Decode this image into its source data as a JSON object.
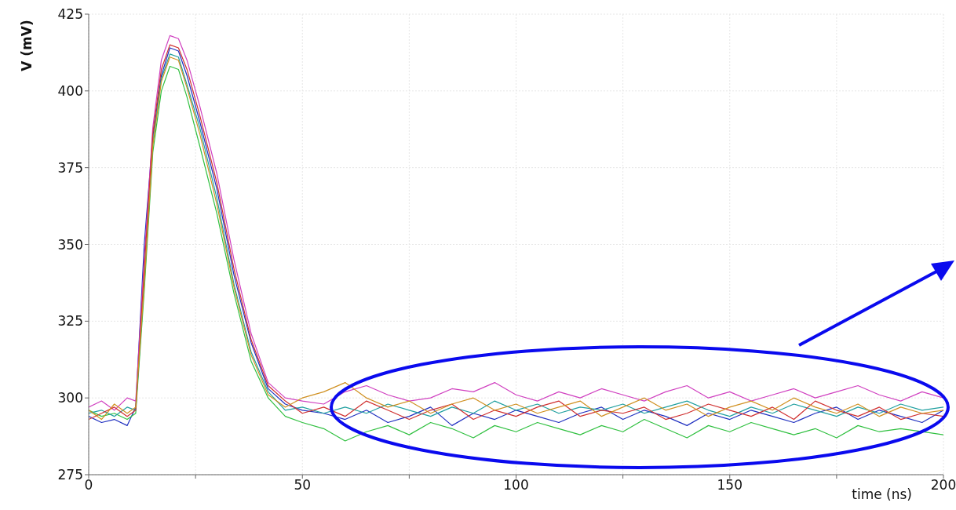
{
  "chart_data": {
    "type": "line",
    "xlabel": "time (ns)",
    "ylabel": "V (mV)",
    "x": [
      0,
      3,
      6,
      9,
      11,
      13,
      15,
      17,
      19,
      21,
      23,
      26,
      30,
      34,
      38,
      42,
      46,
      50,
      55,
      60,
      65,
      70,
      75,
      80,
      85,
      90,
      95,
      100,
      105,
      110,
      115,
      120,
      125,
      130,
      135,
      140,
      145,
      150,
      155,
      160,
      165,
      170,
      175,
      180,
      185,
      190,
      195,
      200
    ],
    "xlim": [
      0,
      200
    ],
    "xticks": [
      0,
      {
        "value": 25,
        "label": null
      },
      50,
      {
        "value": 75,
        "label": null
      },
      100,
      {
        "value": 125,
        "label": null
      },
      150,
      {
        "value": 175,
        "label": null
      },
      200
    ],
    "ylim": [
      275,
      425
    ],
    "yticks": [
      275,
      300,
      325,
      350,
      375,
      400,
      425
    ],
    "grid": true,
    "marker": "none",
    "line_style": "solid",
    "series": [
      {
        "color": "#2030c0",
        "values": [
          294,
          292,
          293,
          291,
          297,
          350,
          385,
          405,
          414,
          413,
          405,
          390,
          368,
          340,
          318,
          303,
          298,
          296,
          295,
          293,
          296,
          292,
          294,
          297,
          291,
          295,
          293,
          296,
          294,
          292,
          295,
          297,
          293,
          296,
          294,
          291,
          295,
          293,
          296,
          294,
          292,
          295,
          297,
          293,
          296,
          294,
          292,
          296
        ]
      },
      {
        "color": "#30c040",
        "values": [
          296,
          294,
          295,
          293,
          295,
          335,
          380,
          400,
          408,
          407,
          398,
          382,
          360,
          334,
          312,
          300,
          294,
          292,
          290,
          286,
          289,
          291,
          288,
          292,
          290,
          287,
          291,
          289,
          292,
          290,
          288,
          291,
          289,
          293,
          290,
          287,
          291,
          289,
          292,
          290,
          288,
          290,
          287,
          291,
          289,
          290,
          289,
          288
        ]
      },
      {
        "color": "#d040c0",
        "values": [
          297,
          299,
          296,
          300,
          299,
          345,
          388,
          410,
          418,
          417,
          410,
          395,
          373,
          345,
          321,
          305,
          300,
          299,
          298,
          302,
          304,
          301,
          299,
          300,
          303,
          302,
          305,
          301,
          299,
          302,
          300,
          303,
          301,
          299,
          302,
          304,
          300,
          302,
          299,
          301,
          303,
          300,
          302,
          304,
          301,
          299,
          302,
          300
        ]
      },
      {
        "color": "#20a0a0",
        "values": [
          295,
          296,
          294,
          297,
          296,
          338,
          383,
          404,
          412,
          411,
          402,
          388,
          365,
          337,
          315,
          302,
          296,
          297,
          295,
          297,
          295,
          298,
          296,
          294,
          297,
          295,
          299,
          296,
          298,
          295,
          297,
          296,
          298,
          295,
          297,
          299,
          296,
          294,
          297,
          295,
          298,
          296,
          294,
          297,
          295,
          298,
          296,
          297
        ]
      },
      {
        "color": "#d03030",
        "values": [
          293,
          295,
          297,
          294,
          296,
          342,
          386,
          407,
          415,
          414,
          407,
          392,
          370,
          342,
          319,
          304,
          299,
          295,
          297,
          294,
          299,
          296,
          293,
          296,
          298,
          293,
          296,
          294,
          297,
          299,
          294,
          296,
          295,
          297,
          293,
          295,
          298,
          296,
          294,
          297,
          293,
          299,
          296,
          294,
          297,
          293,
          295,
          294
        ]
      },
      {
        "color": "#d09020",
        "values": [
          296,
          293,
          298,
          295,
          297,
          337,
          382,
          403,
          411,
          410,
          401,
          386,
          363,
          336,
          314,
          301,
          297,
          300,
          302,
          305,
          300,
          297,
          299,
          295,
          298,
          300,
          296,
          298,
          295,
          297,
          299,
          294,
          297,
          300,
          296,
          298,
          294,
          297,
          299,
          296,
          300,
          297,
          295,
          298,
          294,
          297,
          295,
          296
        ]
      }
    ]
  }
}
